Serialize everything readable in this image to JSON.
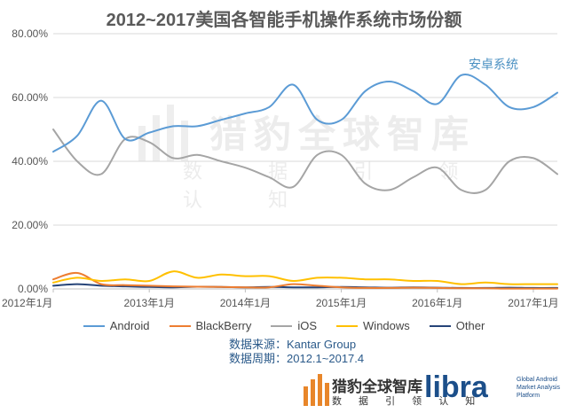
{
  "chart_data": {
    "type": "line",
    "title": "2012~2017美国各智能手机操作系统市场份额",
    "xlabel": "",
    "ylabel": "",
    "ylim": [
      0,
      80
    ],
    "y_ticks": [
      "0.00%",
      "20.00%",
      "40.00%",
      "60.00%",
      "80.00%"
    ],
    "x_range": [
      "2012-01",
      "2017-04"
    ],
    "x_tick_labels": [
      "2012年1月",
      "2013年1月",
      "2014年1月",
      "2015年1月",
      "2016年1月",
      "2017年1月"
    ],
    "grid": "horizontal",
    "legend_position": "bottom",
    "annotation": {
      "text": "安卓系统",
      "color": "#4a90c2"
    },
    "series": [
      {
        "name": "Android",
        "color": "#5b9bd5",
        "x": [
          "2012-01",
          "2012-04",
          "2012-07",
          "2012-10",
          "2013-01",
          "2013-04",
          "2013-07",
          "2013-10",
          "2014-01",
          "2014-04",
          "2014-07",
          "2014-10",
          "2015-01",
          "2015-04",
          "2015-07",
          "2015-10",
          "2016-01",
          "2016-04",
          "2016-07",
          "2016-10",
          "2017-01",
          "2017-04"
        ],
        "values": [
          43,
          48,
          59,
          47,
          49,
          51,
          51,
          53,
          55,
          57,
          64,
          53,
          53,
          62,
          65,
          62,
          58,
          67,
          64,
          57,
          57,
          61.5
        ]
      },
      {
        "name": "BlackBerry",
        "color": "#ed7d31",
        "x": [
          "2012-01",
          "2012-04",
          "2012-07",
          "2012-10",
          "2013-01",
          "2013-04",
          "2013-07",
          "2013-10",
          "2014-01",
          "2014-04",
          "2014-07",
          "2014-10",
          "2015-01",
          "2015-04",
          "2015-07",
          "2015-10",
          "2016-01",
          "2016-04",
          "2016-07",
          "2016-10",
          "2017-01",
          "2017-04"
        ],
        "values": [
          3,
          5,
          1.5,
          1.2,
          1,
          0.8,
          0.7,
          0.6,
          0.5,
          0.5,
          1.5,
          1,
          0.5,
          0.3,
          0.3,
          0.4,
          0.3,
          0.2,
          0.2,
          0.1,
          0.1,
          0.1
        ]
      },
      {
        "name": "iOS",
        "color": "#a5a5a5",
        "x": [
          "2012-01",
          "2012-04",
          "2012-07",
          "2012-10",
          "2013-01",
          "2013-04",
          "2013-07",
          "2013-10",
          "2014-01",
          "2014-04",
          "2014-07",
          "2014-10",
          "2015-01",
          "2015-04",
          "2015-07",
          "2015-10",
          "2016-01",
          "2016-04",
          "2016-07",
          "2016-10",
          "2017-01",
          "2017-04"
        ],
        "values": [
          50,
          40,
          36,
          47,
          46,
          41,
          42,
          40,
          38,
          35,
          32,
          42,
          42,
          33,
          31,
          35,
          38,
          31,
          31,
          40,
          41,
          36
        ]
      },
      {
        "name": "Windows",
        "color": "#ffc000",
        "x": [
          "2012-01",
          "2012-04",
          "2012-07",
          "2012-10",
          "2013-01",
          "2013-04",
          "2013-07",
          "2013-10",
          "2014-01",
          "2014-04",
          "2014-07",
          "2014-10",
          "2015-01",
          "2015-04",
          "2015-07",
          "2015-10",
          "2016-01",
          "2016-04",
          "2016-07",
          "2016-10",
          "2017-01",
          "2017-04"
        ],
        "values": [
          2,
          3.5,
          2.5,
          3,
          2.5,
          5.5,
          3.5,
          4.5,
          4,
          4,
          2.5,
          3.5,
          3.5,
          3,
          3,
          2.5,
          2.5,
          1.5,
          2,
          1.5,
          1.5,
          1.5
        ]
      },
      {
        "name": "Other",
        "color": "#264478",
        "x": [
          "2012-01",
          "2012-04",
          "2012-07",
          "2012-10",
          "2013-01",
          "2013-04",
          "2013-07",
          "2013-10",
          "2014-01",
          "2014-04",
          "2014-07",
          "2014-10",
          "2015-01",
          "2015-04",
          "2015-07",
          "2015-10",
          "2016-01",
          "2016-04",
          "2016-07",
          "2016-10",
          "2017-01",
          "2017-04"
        ],
        "values": [
          1,
          1.5,
          1,
          0.8,
          0.6,
          0.5,
          0.7,
          0.6,
          0.5,
          0.6,
          0.5,
          0.5,
          0.6,
          0.5,
          0.4,
          0.5,
          0.4,
          0.3,
          0.3,
          0.4,
          0.3,
          0.3
        ]
      }
    ]
  },
  "source": {
    "data_source": "数据来源：Kantar Group",
    "data_period": "数据周期：2012.1~2017.4"
  },
  "watermark": {
    "brand_cn": "猎豹全球智库",
    "brand_sub": "数 据 引 领 认 知"
  },
  "footer": {
    "brand_cn": "猎豹全球智库",
    "brand_sub": "数 据 引 领 认 知",
    "libra_word": "libra",
    "libra_caption": "Global Android Market Analysis Platform",
    "bar_color": "#e8862a",
    "libra_color": "#1c4f8a"
  }
}
